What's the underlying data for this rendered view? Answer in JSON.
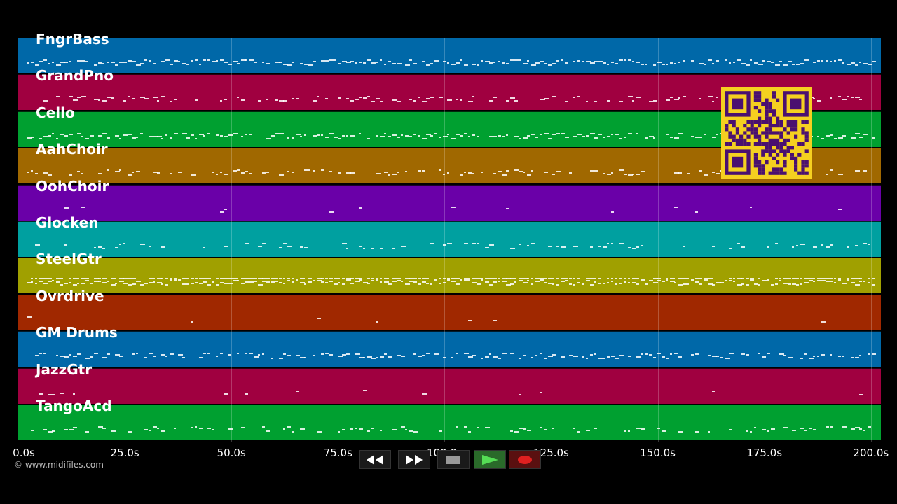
{
  "tracks": [
    {
      "name": "FngrBass",
      "color": "#0068a8"
    },
    {
      "name": "GrandPno",
      "color": "#a00040"
    },
    {
      "name": "Cello",
      "color": "#00a030"
    },
    {
      "name": "AahChoir",
      "color": "#a06800"
    },
    {
      "name": "OohChoir",
      "color": "#6a00a8"
    },
    {
      "name": "Glocken",
      "color": "#00a0a0"
    },
    {
      "name": "SteelGtr",
      "color": "#a0a000"
    },
    {
      "name": "Ovrdrive",
      "color": "#a02800"
    },
    {
      "name": "GM Drums",
      "color": "#0068a8"
    },
    {
      "name": "JazzGtr",
      "color": "#a00040"
    },
    {
      "name": "TangoAcd",
      "color": "#00a030"
    }
  ],
  "timeline": {
    "ticks": [
      "0.0s",
      "25.0s",
      "50.0s",
      "75.0s",
      "100.0s",
      "125.0s",
      "150.0s",
      "175.0s",
      "200.0s"
    ],
    "duration_seconds": 202.5
  },
  "copyright": "© www.midifiles.com",
  "controls": [
    {
      "id": "rewind",
      "icon": "rewind-icon"
    },
    {
      "id": "fast-forward",
      "icon": "fast-forward-icon"
    },
    {
      "id": "stop",
      "icon": "stop-icon"
    },
    {
      "id": "play",
      "icon": "play-icon"
    },
    {
      "id": "record",
      "icon": "record-icon"
    }
  ],
  "qr": {
    "icon": "qr-code-icon",
    "color": "#f5d020"
  }
}
